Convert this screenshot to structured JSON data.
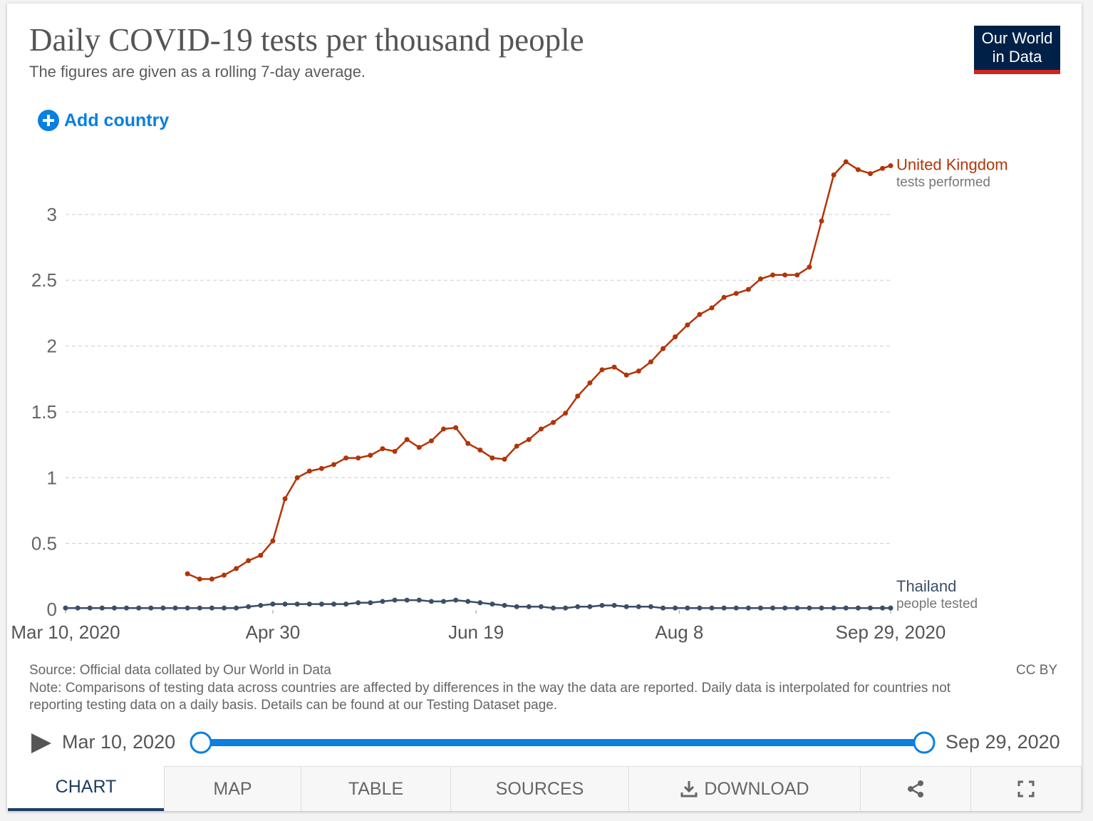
{
  "header": {
    "title": "Daily COVID-19 tests per thousand people",
    "subtitle": "The figures are given as a rolling 7-day average.",
    "logo": [
      "Our World",
      "in Data"
    ],
    "add_country": "Add country"
  },
  "chart_data": {
    "type": "line",
    "x": [
      "2020-03-10",
      "2020-03-13",
      "2020-03-16",
      "2020-03-19",
      "2020-03-22",
      "2020-03-25",
      "2020-03-28",
      "2020-03-31",
      "2020-04-03",
      "2020-04-06",
      "2020-04-09",
      "2020-04-12",
      "2020-04-15",
      "2020-04-18",
      "2020-04-21",
      "2020-04-24",
      "2020-04-27",
      "2020-04-30",
      "2020-05-03",
      "2020-05-06",
      "2020-05-09",
      "2020-05-12",
      "2020-05-15",
      "2020-05-18",
      "2020-05-21",
      "2020-05-24",
      "2020-05-27",
      "2020-05-30",
      "2020-06-02",
      "2020-06-05",
      "2020-06-08",
      "2020-06-11",
      "2020-06-14",
      "2020-06-17",
      "2020-06-20",
      "2020-06-23",
      "2020-06-26",
      "2020-06-29",
      "2020-07-02",
      "2020-07-05",
      "2020-07-08",
      "2020-07-11",
      "2020-07-14",
      "2020-07-17",
      "2020-07-20",
      "2020-07-23",
      "2020-07-26",
      "2020-07-29",
      "2020-08-01",
      "2020-08-04",
      "2020-08-07",
      "2020-08-10",
      "2020-08-13",
      "2020-08-16",
      "2020-08-19",
      "2020-08-22",
      "2020-08-25",
      "2020-08-28",
      "2020-08-31",
      "2020-09-03",
      "2020-09-06",
      "2020-09-09",
      "2020-09-12",
      "2020-09-15",
      "2020-09-18",
      "2020-09-21",
      "2020-09-24",
      "2020-09-27",
      "2020-09-29"
    ],
    "series": [
      {
        "name": "United Kingdom",
        "sublabel": "tests performed",
        "color": "#b13507",
        "values": [
          null,
          null,
          null,
          null,
          null,
          null,
          null,
          null,
          null,
          null,
          0.27,
          0.23,
          0.23,
          0.26,
          0.31,
          0.37,
          0.41,
          0.52,
          0.84,
          1.0,
          1.05,
          1.07,
          1.1,
          1.15,
          1.15,
          1.17,
          1.22,
          1.2,
          1.29,
          1.23,
          1.28,
          1.37,
          1.38,
          1.26,
          1.21,
          1.15,
          1.14,
          1.24,
          1.29,
          1.37,
          1.42,
          1.49,
          1.62,
          1.72,
          1.82,
          1.84,
          1.78,
          1.81,
          1.88,
          1.98,
          2.07,
          2.16,
          2.24,
          2.29,
          2.37,
          2.4,
          2.43,
          2.51,
          2.54,
          2.54,
          2.54,
          2.6,
          2.95,
          3.3,
          3.4,
          3.34,
          3.31,
          3.35,
          3.37
        ]
      },
      {
        "name": "Thailand",
        "sublabel": "people tested",
        "color": "#3c4e66",
        "values": [
          0.01,
          0.01,
          0.01,
          0.01,
          0.01,
          0.01,
          0.01,
          0.01,
          0.01,
          0.01,
          0.01,
          0.01,
          0.01,
          0.01,
          0.01,
          0.02,
          0.03,
          0.04,
          0.04,
          0.04,
          0.04,
          0.04,
          0.04,
          0.04,
          0.05,
          0.05,
          0.06,
          0.07,
          0.07,
          0.07,
          0.06,
          0.06,
          0.07,
          0.06,
          0.05,
          0.04,
          0.03,
          0.02,
          0.02,
          0.02,
          0.01,
          0.01,
          0.02,
          0.02,
          0.03,
          0.03,
          0.02,
          0.02,
          0.02,
          0.01,
          0.01,
          0.01,
          0.01,
          0.01,
          0.01,
          0.01,
          0.01,
          0.01,
          0.01,
          0.01,
          0.01,
          0.01,
          0.01,
          0.01,
          0.01,
          0.01,
          0.01,
          0.01,
          0.01
        ]
      }
    ],
    "xlim": [
      "2020-03-10",
      "2020-09-29"
    ],
    "xticks": [
      {
        "value": "2020-03-10",
        "label": "Mar 10, 2020"
      },
      {
        "value": "2020-04-30",
        "label": "Apr 30"
      },
      {
        "value": "2020-06-19",
        "label": "Jun 19"
      },
      {
        "value": "2020-08-08",
        "label": "Aug 8"
      },
      {
        "value": "2020-09-29",
        "label": "Sep 29, 2020"
      }
    ],
    "ylim": [
      0,
      3.4
    ],
    "yticks": [
      0,
      0.5,
      1,
      1.5,
      2,
      2.5,
      3
    ],
    "grid": true
  },
  "footer": {
    "source": "Source: Official data collated by Our World in Data",
    "license": "CC BY",
    "note": "Note: Comparisons of testing data across countries are affected by differences in the way the data are reported. Daily data is interpolated for countries not reporting testing data on a daily basis. Details can be found at our Testing Dataset page."
  },
  "timeline": {
    "start": "Mar 10, 2020",
    "end": "Sep 29, 2020"
  },
  "tabs": [
    "CHART",
    "MAP",
    "TABLE",
    "SOURCES",
    "DOWNLOAD"
  ]
}
